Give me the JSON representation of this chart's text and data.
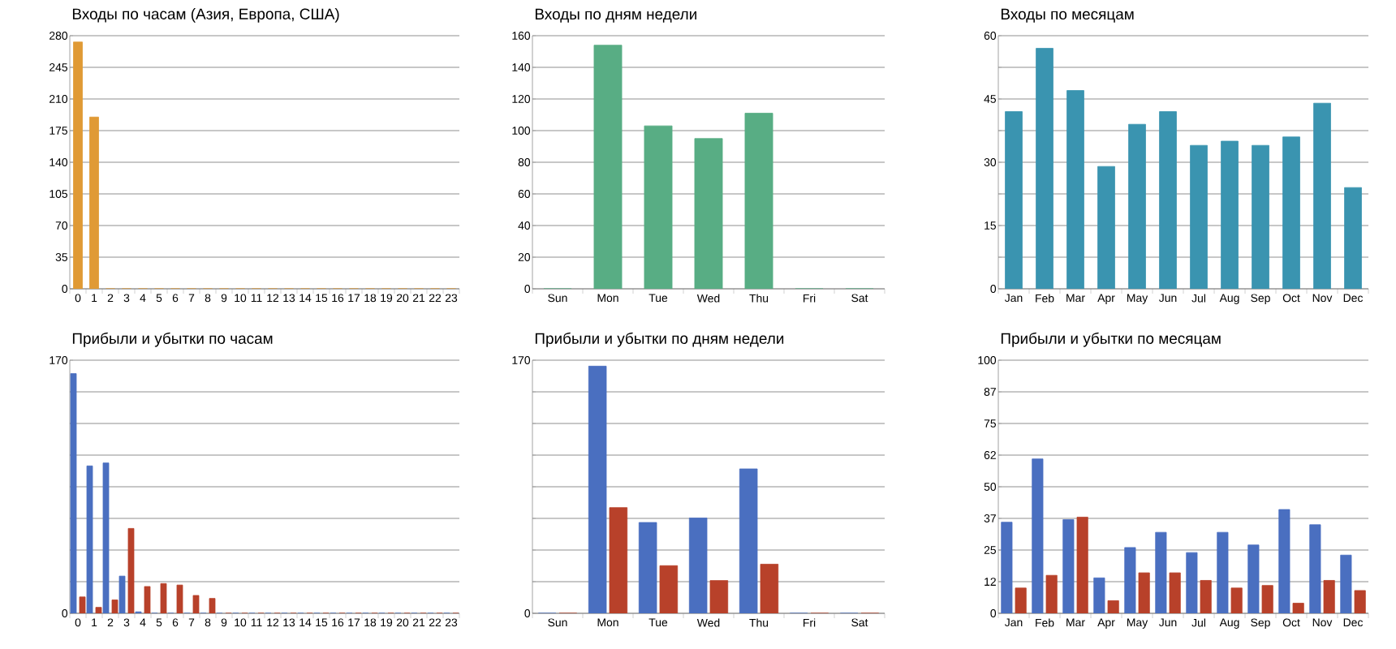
{
  "chart_data": [
    {
      "type": "bar",
      "title": "Входы по часам (Азия, Европа, США)",
      "categories": [
        "0",
        "1",
        "2",
        "3",
        "4",
        "5",
        "6",
        "7",
        "8",
        "9",
        "10",
        "11",
        "12",
        "13",
        "14",
        "15",
        "16",
        "17",
        "18",
        "19",
        "20",
        "21",
        "22",
        "23"
      ],
      "color": "#e09a35",
      "values": [
        273,
        190,
        0,
        0,
        0,
        0,
        0,
        0,
        0,
        0,
        0,
        0,
        0,
        0,
        0,
        0,
        0,
        0,
        0,
        0,
        0,
        0,
        0,
        0
      ],
      "ylim": [
        0,
        280
      ],
      "yticks": [
        0,
        35,
        70,
        105,
        140,
        175,
        210,
        245,
        280
      ],
      "grid": "y"
    },
    {
      "type": "bar",
      "title": "Входы по дням недели",
      "categories": [
        "Sun",
        "Mon",
        "Tue",
        "Wed",
        "Thu",
        "Fri",
        "Sat"
      ],
      "color": "#58ad84",
      "values": [
        0,
        154,
        103,
        95,
        111,
        0,
        0
      ],
      "ylim": [
        0,
        160
      ],
      "yticks": [
        0,
        20,
        40,
        60,
        80,
        100,
        120,
        140,
        160
      ],
      "grid": "y"
    },
    {
      "type": "bar",
      "title": "Входы по месяцам",
      "categories": [
        "Jan",
        "Feb",
        "Mar",
        "Apr",
        "May",
        "Jun",
        "Jul",
        "Aug",
        "Sep",
        "Oct",
        "Nov",
        "Dec"
      ],
      "color": "#3a94b0",
      "values": [
        42,
        57,
        47,
        29,
        39,
        42,
        34,
        35,
        34,
        36,
        44,
        24
      ],
      "ylim": [
        0,
        60
      ],
      "yticks": [
        0,
        {
          "value": 7.5,
          "label": null
        },
        15,
        {
          "value": 22.5,
          "label": null
        },
        30,
        {
          "value": 37.5,
          "label": null
        },
        45,
        {
          "value": 52.5,
          "label": null
        },
        60
      ],
      "grid": "y"
    },
    {
      "type": "bar",
      "title": "Прибыли и убытки по часам",
      "categories": [
        "0",
        "1",
        "2",
        "3",
        "4",
        "5",
        "6",
        "7",
        "8",
        "9",
        "10",
        "11",
        "12",
        "13",
        "14",
        "15",
        "16",
        "17",
        "18",
        "19",
        "20",
        "21",
        "22",
        "23"
      ],
      "series": [
        {
          "color": "#4a6fc0",
          "values": [
            161,
            99,
            101,
            25,
            1,
            0,
            0,
            0,
            0,
            0,
            0,
            0,
            0,
            0,
            0,
            0,
            0,
            0,
            0,
            0,
            0,
            0,
            0,
            0
          ]
        },
        {
          "color": "#b8412a",
          "values": [
            11,
            4,
            9,
            57,
            18,
            20,
            19,
            12,
            10,
            0,
            0,
            0,
            0,
            0,
            0,
            0,
            0,
            0,
            0,
            0,
            0,
            0,
            0,
            0
          ]
        }
      ],
      "ylim": [
        0,
        170
      ],
      "yticks": [
        0,
        {
          "value": 21.25,
          "label": null
        },
        {
          "value": 42.5,
          "label": null
        },
        {
          "value": 63.75,
          "label": null
        },
        {
          "value": 85,
          "label": null
        },
        {
          "value": 106.25,
          "label": null
        },
        {
          "value": 127.5,
          "label": null
        },
        {
          "value": 148.75,
          "label": null
        },
        170
      ],
      "grid": "y"
    },
    {
      "type": "bar",
      "title": "Прибыли и убытки по дням недели",
      "categories": [
        "Sun",
        "Mon",
        "Tue",
        "Wed",
        "Thu",
        "Fri",
        "Sat"
      ],
      "series": [
        {
          "color": "#4a6fc0",
          "values": [
            0,
            166,
            61,
            64,
            97,
            0,
            0
          ]
        },
        {
          "color": "#b8412a",
          "values": [
            0,
            71,
            32,
            22,
            33,
            0,
            0
          ]
        }
      ],
      "ylim": [
        0,
        170
      ],
      "yticks": [
        0,
        {
          "value": 21.25,
          "label": null
        },
        {
          "value": 42.5,
          "label": null
        },
        {
          "value": 63.75,
          "label": null
        },
        {
          "value": 85,
          "label": null
        },
        {
          "value": 106.25,
          "label": null
        },
        {
          "value": 127.5,
          "label": null
        },
        {
          "value": 148.75,
          "label": null
        },
        170
      ],
      "grid": "y"
    },
    {
      "type": "bar",
      "title": "Прибыли и убытки по месяцам",
      "categories": [
        "Jan",
        "Feb",
        "Mar",
        "Apr",
        "May",
        "Jun",
        "Jul",
        "Aug",
        "Sep",
        "Oct",
        "Nov",
        "Dec"
      ],
      "series": [
        {
          "color": "#4a6fc0",
          "values": [
            36,
            61,
            37,
            14,
            26,
            32,
            24,
            32,
            27,
            41,
            35,
            23
          ]
        },
        {
          "color": "#b8412a",
          "values": [
            10,
            15,
            38,
            5,
            16,
            16,
            13,
            10,
            11,
            4,
            13,
            9
          ]
        }
      ],
      "ylim": [
        0,
        100
      ],
      "yticks": [
        0,
        {
          "value": 12.5,
          "label": "12"
        },
        25,
        {
          "value": 37.5,
          "label": "37"
        },
        50,
        {
          "value": 62.5,
          "label": "62"
        },
        75,
        {
          "value": 87.5,
          "label": "87"
        },
        100
      ],
      "grid": "y"
    }
  ]
}
